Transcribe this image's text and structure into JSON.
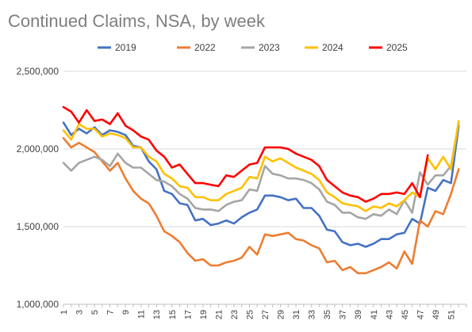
{
  "chart_data": {
    "type": "line",
    "title": "Continued Claims, NSA, by week",
    "xlabel": "",
    "ylabel": "",
    "ylim": [
      1000000,
      2500000
    ],
    "yticks": [
      1000000,
      1500000,
      2000000,
      2500000
    ],
    "ytick_labels": [
      "1,000,000",
      "1,500,000",
      "2,000,000",
      "2,500,000"
    ],
    "xlim": [
      1,
      53
    ],
    "xticks": [
      1,
      3,
      5,
      7,
      9,
      11,
      13,
      15,
      17,
      19,
      21,
      23,
      25,
      27,
      29,
      31,
      33,
      35,
      37,
      39,
      41,
      43,
      45,
      47,
      49,
      51
    ],
    "grid": "horizontal",
    "legend_position": "top",
    "series": [
      {
        "name": "2019",
        "color": "#4472c4",
        "x": [
          1,
          2,
          3,
          4,
          5,
          6,
          7,
          8,
          9,
          10,
          11,
          12,
          13,
          14,
          15,
          16,
          17,
          18,
          19,
          20,
          21,
          22,
          23,
          24,
          25,
          26,
          27,
          28,
          29,
          30,
          31,
          32,
          33,
          34,
          35,
          36,
          37,
          38,
          39,
          40,
          41,
          42,
          43,
          44,
          45,
          46,
          47,
          48,
          49,
          50,
          51,
          52
        ],
        "values": [
          2170000,
          2090000,
          2130000,
          2100000,
          2140000,
          2090000,
          2120000,
          2110000,
          2090000,
          2020000,
          2010000,
          1920000,
          1870000,
          1730000,
          1710000,
          1650000,
          1640000,
          1540000,
          1550000,
          1510000,
          1520000,
          1540000,
          1520000,
          1560000,
          1590000,
          1610000,
          1700000,
          1700000,
          1690000,
          1670000,
          1680000,
          1620000,
          1620000,
          1570000,
          1480000,
          1470000,
          1400000,
          1380000,
          1390000,
          1370000,
          1390000,
          1420000,
          1420000,
          1450000,
          1460000,
          1550000,
          1520000,
          1750000,
          1730000,
          1800000,
          1780000,
          2150000
        ]
      },
      {
        "name": "2022",
        "color": "#ed7d31",
        "x": [
          1,
          2,
          3,
          4,
          5,
          6,
          7,
          8,
          9,
          10,
          11,
          12,
          13,
          14,
          15,
          16,
          17,
          18,
          19,
          20,
          21,
          22,
          23,
          24,
          25,
          26,
          27,
          28,
          29,
          30,
          31,
          32,
          33,
          34,
          35,
          36,
          37,
          38,
          39,
          40,
          41,
          42,
          43,
          44,
          45,
          46,
          47,
          48,
          49,
          50,
          51,
          52
        ],
        "values": [
          2070000,
          2010000,
          2040000,
          2010000,
          1980000,
          1920000,
          1860000,
          1910000,
          1810000,
          1730000,
          1680000,
          1650000,
          1570000,
          1470000,
          1440000,
          1400000,
          1330000,
          1280000,
          1290000,
          1250000,
          1250000,
          1270000,
          1280000,
          1300000,
          1370000,
          1320000,
          1450000,
          1440000,
          1450000,
          1460000,
          1420000,
          1410000,
          1380000,
          1360000,
          1270000,
          1280000,
          1220000,
          1240000,
          1200000,
          1200000,
          1220000,
          1240000,
          1270000,
          1230000,
          1340000,
          1260000,
          1540000,
          1500000,
          1600000,
          1580000,
          1710000,
          1870000
        ]
      },
      {
        "name": "2023",
        "color": "#a5a5a5",
        "x": [
          1,
          2,
          3,
          4,
          5,
          6,
          7,
          8,
          9,
          10,
          11,
          12,
          13,
          14,
          15,
          16,
          17,
          18,
          19,
          20,
          21,
          22,
          23,
          24,
          25,
          26,
          27,
          28,
          29,
          30,
          31,
          32,
          33,
          34,
          35,
          36,
          37,
          38,
          39,
          40,
          41,
          42,
          43,
          44,
          45,
          46,
          47,
          48,
          49,
          50,
          51,
          52
        ],
        "values": [
          1910000,
          1860000,
          1910000,
          1930000,
          1950000,
          1930000,
          1890000,
          1970000,
          1910000,
          1880000,
          1880000,
          1840000,
          1800000,
          1790000,
          1760000,
          1710000,
          1680000,
          1620000,
          1610000,
          1610000,
          1600000,
          1640000,
          1660000,
          1670000,
          1740000,
          1730000,
          1890000,
          1840000,
          1830000,
          1810000,
          1810000,
          1800000,
          1780000,
          1740000,
          1660000,
          1640000,
          1590000,
          1590000,
          1560000,
          1550000,
          1580000,
          1570000,
          1610000,
          1580000,
          1670000,
          1590000,
          1850000,
          1770000,
          1830000,
          1830000,
          1890000,
          2170000
        ]
      },
      {
        "name": "2024",
        "color": "#ffc000",
        "x": [
          1,
          2,
          3,
          4,
          5,
          6,
          7,
          8,
          9,
          10,
          11,
          12,
          13,
          14,
          15,
          16,
          17,
          18,
          19,
          20,
          21,
          22,
          23,
          24,
          25,
          26,
          27,
          28,
          29,
          30,
          31,
          32,
          33,
          34,
          35,
          36,
          37,
          38,
          39,
          40,
          41,
          42,
          43,
          44,
          45,
          46,
          47,
          48,
          49,
          50,
          51,
          52
        ],
        "values": [
          2120000,
          2060000,
          2160000,
          2130000,
          2130000,
          2080000,
          2100000,
          2090000,
          2070000,
          2010000,
          2010000,
          1950000,
          1920000,
          1840000,
          1810000,
          1760000,
          1750000,
          1690000,
          1690000,
          1670000,
          1670000,
          1710000,
          1730000,
          1750000,
          1820000,
          1810000,
          1950000,
          1920000,
          1940000,
          1910000,
          1880000,
          1860000,
          1840000,
          1800000,
          1720000,
          1690000,
          1650000,
          1640000,
          1630000,
          1600000,
          1630000,
          1620000,
          1650000,
          1630000,
          1670000,
          1720000,
          1690000,
          1940000,
          1870000,
          1950000,
          1870000,
          2180000
        ]
      },
      {
        "name": "2025",
        "color": "#ff0000",
        "x": [
          1,
          2,
          3,
          4,
          5,
          6,
          7,
          8,
          9,
          10,
          11,
          12,
          13,
          14,
          15,
          16,
          17,
          18,
          19,
          20,
          21,
          22,
          23,
          24,
          25,
          26,
          27,
          28,
          29,
          30,
          31,
          32,
          33,
          34,
          35,
          36,
          37,
          38,
          39,
          40,
          41,
          42,
          43,
          44,
          45,
          46,
          47,
          48
        ],
        "values": [
          2270000,
          2240000,
          2170000,
          2250000,
          2180000,
          2190000,
          2160000,
          2230000,
          2150000,
          2120000,
          2080000,
          2060000,
          1990000,
          1950000,
          1880000,
          1900000,
          1840000,
          1780000,
          1780000,
          1770000,
          1760000,
          1830000,
          1820000,
          1860000,
          1900000,
          1910000,
          2010000,
          2010000,
          2010000,
          2000000,
          1970000,
          1950000,
          1930000,
          1890000,
          1800000,
          1760000,
          1720000,
          1700000,
          1690000,
          1660000,
          1680000,
          1710000,
          1710000,
          1720000,
          1710000,
          1780000,
          1690000,
          1960000
        ]
      }
    ]
  }
}
